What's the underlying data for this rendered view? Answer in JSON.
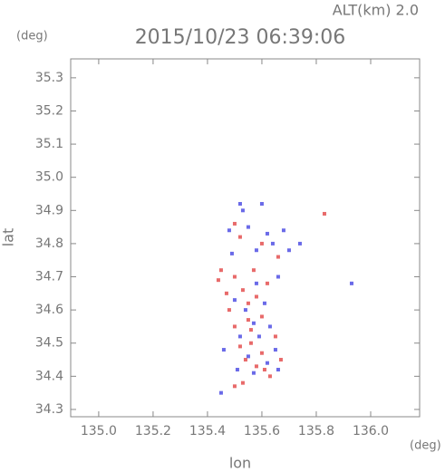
{
  "chart_data": {
    "type": "scatter",
    "title": "2015/10/23 06:39:06",
    "subtitle": "ALT(km) 2.0",
    "x_label": "lon",
    "y_label": "lat",
    "x_unit": "(deg)",
    "y_unit": "(deg)",
    "xlim": [
      134.897,
      136.18
    ],
    "ylim": [
      34.278,
      35.357
    ],
    "xticks": [
      {
        "value": 135.0,
        "label": "135.0"
      },
      135.2,
      135.4,
      135.6,
      135.8,
      {
        "value": 136.0,
        "label": "136.0"
      }
    ],
    "yticks": [
      34.3,
      34.4,
      34.5,
      34.6,
      34.7,
      34.8,
      34.9,
      {
        "value": 35.0,
        "label": "35.0"
      },
      35.1,
      35.2,
      35.3
    ],
    "series": [
      {
        "color": "#e86a6a",
        "x": [
          135.45,
          135.5,
          135.53,
          135.55,
          135.48,
          135.5,
          135.56,
          135.52,
          135.6,
          135.58,
          135.63,
          135.53,
          135.5,
          135.55,
          135.6,
          135.65,
          135.67,
          135.62,
          135.57,
          135.52,
          135.6,
          135.66,
          135.5,
          135.83,
          135.58,
          135.44,
          135.47,
          135.54,
          135.61,
          135.56
        ],
        "y": [
          34.72,
          34.7,
          34.66,
          34.62,
          34.6,
          34.55,
          34.5,
          34.49,
          34.47,
          34.43,
          34.4,
          34.38,
          34.37,
          34.57,
          34.58,
          34.52,
          34.45,
          34.68,
          34.72,
          34.82,
          34.8,
          34.76,
          34.86,
          34.89,
          34.64,
          34.69,
          34.65,
          34.45,
          34.42,
          34.54
        ]
      },
      {
        "color": "#6a6ae8",
        "x": [
          135.52,
          135.6,
          135.48,
          135.55,
          135.62,
          135.68,
          135.74,
          135.58,
          135.64,
          135.66,
          135.61,
          135.54,
          135.5,
          135.57,
          135.63,
          135.59,
          135.52,
          135.65,
          135.46,
          135.55,
          135.62,
          135.57,
          135.51,
          135.45,
          135.66,
          135.93,
          135.58,
          135.7,
          135.49,
          135.53
        ],
        "y": [
          34.92,
          34.92,
          34.84,
          34.85,
          34.83,
          34.84,
          34.8,
          34.78,
          34.8,
          34.7,
          34.62,
          34.6,
          34.63,
          34.56,
          34.55,
          34.52,
          34.52,
          34.48,
          34.48,
          34.46,
          34.44,
          34.41,
          34.42,
          34.35,
          34.42,
          34.68,
          34.68,
          34.78,
          34.77,
          34.9
        ]
      }
    ]
  }
}
